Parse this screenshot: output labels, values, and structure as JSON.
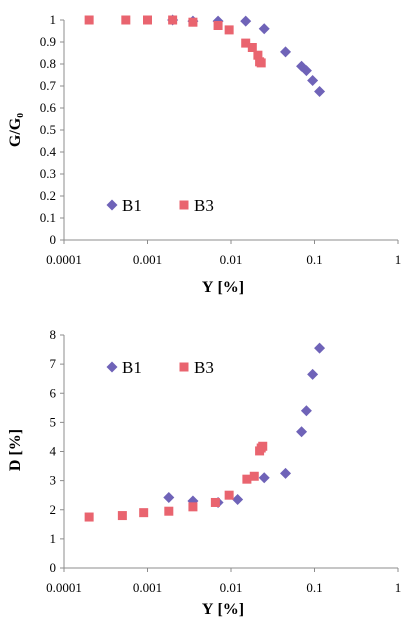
{
  "chart_data": [
    {
      "type": "scatter",
      "xlabel": "Υ [%]",
      "ylabel": "G/G₀",
      "xscale": "log",
      "xlim": [
        0.0001,
        1
      ],
      "ylim": [
        0,
        1
      ],
      "x_ticks": [
        "0.0001",
        "0.001",
        "0.01",
        "0.1",
        "1"
      ],
      "y_ticks": [
        "0",
        "0.1",
        "0.2",
        "0.3",
        "0.4",
        "0.5",
        "0.6",
        "0.7",
        "0.8",
        "0.9",
        "1"
      ],
      "grid": false,
      "legend_position": "bottom-left",
      "series": [
        {
          "name": "B1",
          "marker": "diamond",
          "color": "#6f63b8",
          "points": [
            [
              0.002,
              1.0
            ],
            [
              0.0035,
              0.995
            ],
            [
              0.007,
              0.995
            ],
            [
              0.015,
              0.995
            ],
            [
              0.025,
              0.96
            ],
            [
              0.045,
              0.855
            ],
            [
              0.07,
              0.79
            ],
            [
              0.08,
              0.77
            ],
            [
              0.095,
              0.725
            ],
            [
              0.115,
              0.675
            ]
          ]
        },
        {
          "name": "B3",
          "marker": "square",
          "color": "#e9646f",
          "points": [
            [
              0.0002,
              1.0
            ],
            [
              0.00055,
              1.0
            ],
            [
              0.001,
              1.0
            ],
            [
              0.002,
              1.0
            ],
            [
              0.0035,
              0.99
            ],
            [
              0.007,
              0.975
            ],
            [
              0.0095,
              0.955
            ],
            [
              0.015,
              0.895
            ],
            [
              0.018,
              0.875
            ],
            [
              0.021,
              0.84
            ],
            [
              0.022,
              0.81
            ],
            [
              0.023,
              0.805
            ]
          ]
        }
      ]
    },
    {
      "type": "scatter",
      "xlabel": "Υ [%]",
      "ylabel": "D [%]",
      "xscale": "log",
      "xlim": [
        0.0001,
        1
      ],
      "ylim": [
        0,
        8
      ],
      "x_ticks": [
        "0.0001",
        "0.001",
        "0.01",
        "0.1",
        "1"
      ],
      "y_ticks": [
        "0",
        "1",
        "2",
        "3",
        "4",
        "5",
        "6",
        "7",
        "8"
      ],
      "grid": false,
      "legend_position": "top-left",
      "series": [
        {
          "name": "B1",
          "marker": "diamond",
          "color": "#6f63b8",
          "points": [
            [
              0.0018,
              2.42
            ],
            [
              0.0035,
              2.3
            ],
            [
              0.007,
              2.25
            ],
            [
              0.012,
              2.35
            ],
            [
              0.025,
              3.1
            ],
            [
              0.045,
              3.25
            ],
            [
              0.07,
              4.68
            ],
            [
              0.08,
              5.4
            ],
            [
              0.095,
              6.65
            ],
            [
              0.115,
              7.55
            ]
          ]
        },
        {
          "name": "B3",
          "marker": "square",
          "color": "#e9646f",
          "points": [
            [
              0.0002,
              1.75
            ],
            [
              0.0005,
              1.8
            ],
            [
              0.0009,
              1.9
            ],
            [
              0.0018,
              1.95
            ],
            [
              0.0035,
              2.1
            ],
            [
              0.0065,
              2.25
            ],
            [
              0.0095,
              2.5
            ],
            [
              0.0155,
              3.05
            ],
            [
              0.019,
              3.15
            ],
            [
              0.022,
              4.02
            ],
            [
              0.023,
              4.12
            ],
            [
              0.024,
              4.18
            ]
          ]
        }
      ]
    }
  ]
}
